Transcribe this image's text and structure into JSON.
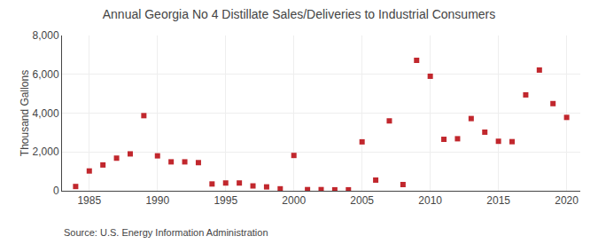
{
  "chart_data": {
    "type": "scatter",
    "title": "Annual Georgia No 4 Distillate Sales/Deliveries to Industrial Consumers",
    "y_label": "Thousand Gallons",
    "annotations": [
      "Source: U.S. Energy Information Administration"
    ],
    "x": [
      1984,
      1985,
      1986,
      1987,
      1988,
      1989,
      1990,
      1991,
      1992,
      1993,
      1994,
      1995,
      1996,
      1997,
      1998,
      1999,
      2000,
      2001,
      2002,
      2003,
      2004,
      2005,
      2006,
      2007,
      2008,
      2009,
      2010,
      2011,
      2012,
      2013,
      2014,
      2015,
      2016,
      2017,
      2018,
      2019,
      2020
    ],
    "values": [
      220,
      1020,
      1330,
      1680,
      1900,
      3870,
      1800,
      1490,
      1490,
      1450,
      350,
      400,
      400,
      250,
      200,
      100,
      1820,
      60,
      60,
      50,
      50,
      2520,
      550,
      3600,
      320,
      6720,
      5900,
      2650,
      2680,
      3720,
      3020,
      2550,
      2530,
      4940,
      6220,
      4490,
      3780
    ],
    "color": "#c1272d",
    "marker": "square",
    "xlim": [
      1983,
      2021
    ],
    "xticks": [
      1985,
      1990,
      1995,
      2000,
      2005,
      2010,
      2015,
      2020
    ],
    "ylim": [
      0,
      8000
    ],
    "yticks": [
      0,
      {
        "value": 2000,
        "label": "2,000"
      },
      {
        "value": 4000,
        "label": "4,000"
      },
      {
        "value": 6000,
        "label": "6,000"
      },
      {
        "value": 8000,
        "label": "8,000"
      }
    ],
    "grid": true
  }
}
